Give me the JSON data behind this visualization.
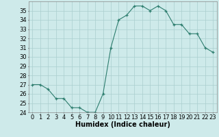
{
  "x": [
    0,
    1,
    2,
    3,
    4,
    5,
    6,
    7,
    8,
    9,
    10,
    11,
    12,
    13,
    14,
    15,
    16,
    17,
    18,
    19,
    20,
    21,
    22,
    23
  ],
  "y": [
    27,
    27,
    26.5,
    25.5,
    25.5,
    24.5,
    24.5,
    24,
    24,
    26,
    31,
    34,
    34.5,
    35.5,
    35.5,
    35,
    35.5,
    35,
    33.5,
    33.5,
    32.5,
    32.5,
    31,
    30.5
  ],
  "line_color": "#2d7d6e",
  "marker": "+",
  "bg_color": "#ceeaea",
  "grid_color": "#aacece",
  "xlabel": "Humidex (Indice chaleur)",
  "ylim": [
    24,
    36
  ],
  "xlim": [
    -0.5,
    23.5
  ],
  "yticks": [
    24,
    25,
    26,
    27,
    28,
    29,
    30,
    31,
    32,
    33,
    34,
    35
  ],
  "xticks": [
    0,
    1,
    2,
    3,
    4,
    5,
    6,
    7,
    8,
    9,
    10,
    11,
    12,
    13,
    14,
    15,
    16,
    17,
    18,
    19,
    20,
    21,
    22,
    23
  ],
  "xlabel_fontsize": 7,
  "tick_fontsize": 6
}
